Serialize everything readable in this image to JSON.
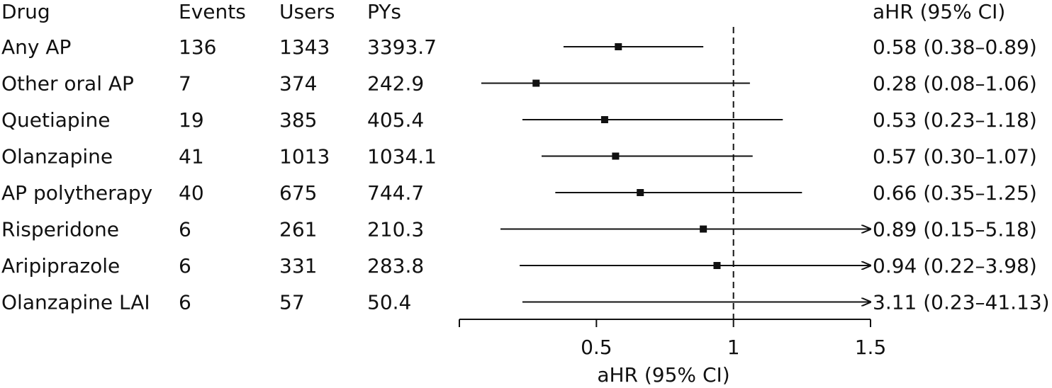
{
  "chart_data": {
    "type": "forest",
    "columns": {
      "drug": "Drug",
      "events": "Events",
      "users": "Users",
      "pys": "PYs",
      "ahr": "aHR (95% CI)"
    },
    "xlabel": "aHR (95% CI)",
    "xlim": [
      0,
      1.5
    ],
    "xticks": [
      0.5,
      1,
      1.5
    ],
    "xtick_labels": [
      "0.5",
      "1",
      "1.5"
    ],
    "reference_line": 1,
    "rows": [
      {
        "drug": "Any AP",
        "events": "136",
        "users": "1343",
        "pys": "3393.7",
        "hr": 0.58,
        "lo": 0.38,
        "hi": 0.89,
        "label": "0.58 (0.38–0.89)"
      },
      {
        "drug": "Other oral AP",
        "events": "7",
        "users": "374",
        "pys": "242.9",
        "hr": 0.28,
        "lo": 0.08,
        "hi": 1.06,
        "label": "0.28 (0.08–1.06)"
      },
      {
        "drug": "Quetiapine",
        "events": "19",
        "users": "385",
        "pys": "405.4",
        "hr": 0.53,
        "lo": 0.23,
        "hi": 1.18,
        "label": "0.53 (0.23–1.18)"
      },
      {
        "drug": "Olanzapine",
        "events": "41",
        "users": "1013",
        "pys": "1034.1",
        "hr": 0.57,
        "lo": 0.3,
        "hi": 1.07,
        "label": "0.57 (0.30–1.07)"
      },
      {
        "drug": "AP polytherapy",
        "events": "40",
        "users": "675",
        "pys": "744.7",
        "hr": 0.66,
        "lo": 0.35,
        "hi": 1.25,
        "label": "0.66 (0.35–1.25)"
      },
      {
        "drug": "Risperidone",
        "events": "6",
        "users": "261",
        "pys": "210.3",
        "hr": 0.89,
        "lo": 0.15,
        "hi": 5.18,
        "label": "0.89 (0.15–5.18)"
      },
      {
        "drug": "Aripiprazole",
        "events": "6",
        "users": "331",
        "pys": "283.8",
        "hr": 0.94,
        "lo": 0.22,
        "hi": 3.98,
        "label": "0.94 (0.22–3.98)"
      },
      {
        "drug": "Olanzapine LAI",
        "events": "6",
        "users": "57",
        "pys": "50.4",
        "hr": null,
        "lo": 0.23,
        "hi": 41.13,
        "label": "3.11 (0.23–41.13)"
      }
    ]
  }
}
